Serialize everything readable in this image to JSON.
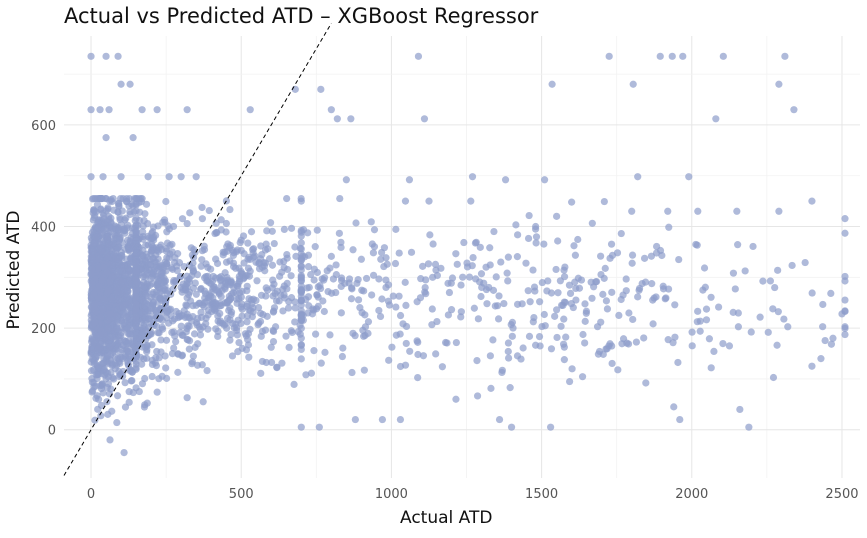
{
  "chart_data": {
    "type": "scatter",
    "title": "Actual vs Predicted ATD – XGBoost Regressor",
    "xlabel": "Actual ATD",
    "ylabel": "Predicted ATD",
    "xlim": [
      -90,
      2560
    ],
    "ylim": [
      -95,
      775
    ],
    "x_ticks": [
      0,
      500,
      1000,
      1500,
      2000,
      2500
    ],
    "x_tick_labels": [
      "0",
      "500",
      "1000",
      "1500",
      "2000",
      "2500"
    ],
    "y_ticks": [
      0,
      200,
      400,
      600
    ],
    "y_tick_labels": [
      "0",
      "200",
      "400",
      "600"
    ],
    "grid": true,
    "legend": "none",
    "point_color": "#8D9CCA",
    "reference_line": {
      "slope": 1,
      "intercept": 0,
      "style": "dashed",
      "color": "#000000"
    },
    "highlighted_points": [
      {
        "x": 0,
        "y": 735
      },
      {
        "x": 50,
        "y": 735
      },
      {
        "x": 90,
        "y": 735
      },
      {
        "x": 1090,
        "y": 735
      },
      {
        "x": 1725,
        "y": 735
      },
      {
        "x": 1895,
        "y": 735
      },
      {
        "x": 1935,
        "y": 735
      },
      {
        "x": 1970,
        "y": 735
      },
      {
        "x": 2105,
        "y": 735
      },
      {
        "x": 2310,
        "y": 735
      },
      {
        "x": 0,
        "y": 630
      },
      {
        "x": 30,
        "y": 630
      },
      {
        "x": 60,
        "y": 630
      },
      {
        "x": 170,
        "y": 630
      },
      {
        "x": 220,
        "y": 630
      },
      {
        "x": 530,
        "y": 630
      },
      {
        "x": 320,
        "y": 630
      },
      {
        "x": 100,
        "y": 680
      },
      {
        "x": 130,
        "y": 680
      },
      {
        "x": 680,
        "y": 670
      },
      {
        "x": 765,
        "y": 670
      },
      {
        "x": 1535,
        "y": 680
      },
      {
        "x": 1805,
        "y": 680
      },
      {
        "x": 2290,
        "y": 680
      },
      {
        "x": 2340,
        "y": 630
      },
      {
        "x": 2080,
        "y": 612
      },
      {
        "x": 1110,
        "y": 612
      },
      {
        "x": 800,
        "y": 630
      },
      {
        "x": 865,
        "y": 612
      },
      {
        "x": 820,
        "y": 612
      },
      {
        "x": 50,
        "y": 575
      },
      {
        "x": 140,
        "y": 575
      },
      {
        "x": 0,
        "y": 498
      },
      {
        "x": 40,
        "y": 498
      },
      {
        "x": 100,
        "y": 498
      },
      {
        "x": 190,
        "y": 498
      },
      {
        "x": 260,
        "y": 498
      },
      {
        "x": 300,
        "y": 498
      },
      {
        "x": 350,
        "y": 498
      },
      {
        "x": 1270,
        "y": 498
      },
      {
        "x": 1380,
        "y": 492
      },
      {
        "x": 1510,
        "y": 492
      },
      {
        "x": 1820,
        "y": 498
      },
      {
        "x": 1990,
        "y": 498
      },
      {
        "x": 1060,
        "y": 492
      },
      {
        "x": 850,
        "y": 492
      },
      {
        "x": 2400,
        "y": 450
      },
      {
        "x": 2290,
        "y": 430
      },
      {
        "x": 2150,
        "y": 430
      },
      {
        "x": 2020,
        "y": 430
      },
      {
        "x": 1920,
        "y": 430
      },
      {
        "x": 1800,
        "y": 430
      },
      {
        "x": 1600,
        "y": 448
      },
      {
        "x": 1550,
        "y": 420
      },
      {
        "x": 2160,
        "y": 40
      },
      {
        "x": 2190,
        "y": 5
      },
      {
        "x": 1940,
        "y": 45
      },
      {
        "x": 1960,
        "y": 20
      },
      {
        "x": 1530,
        "y": 5
      },
      {
        "x": 1400,
        "y": 5
      },
      {
        "x": 1360,
        "y": 20
      },
      {
        "x": 700,
        "y": 5
      },
      {
        "x": 760,
        "y": 5
      },
      {
        "x": 880,
        "y": 20
      },
      {
        "x": 970,
        "y": 20
      },
      {
        "x": 1030,
        "y": 20
      },
      {
        "x": 110,
        "y": -45
      },
      {
        "x": 2500,
        "y": 228
      },
      {
        "x": 2470,
        "y": 180
      },
      {
        "x": 2430,
        "y": 140
      },
      {
        "x": 2400,
        "y": 125
      }
    ],
    "density_clusters": [
      {
        "x_mean": 70,
        "x_spread": 90,
        "x_min": 0,
        "x_max": 320,
        "y_center": 270,
        "y_spread": 85,
        "y_min": -20,
        "y_max": 455,
        "n": 1700
      },
      {
        "x_mean": 350,
        "x_spread": 250,
        "x_min": 150,
        "x_max": 1300,
        "y_center": 270,
        "y_spread": 70,
        "y_min": 0,
        "y_max": 455,
        "n": 800
      },
      {
        "x_mean": 1400,
        "x_spread": 550,
        "x_min": 700,
        "x_max": 2510,
        "y_center": 265,
        "y_spread": 75,
        "y_min": 60,
        "y_max": 450,
        "n": 420
      }
    ]
  }
}
